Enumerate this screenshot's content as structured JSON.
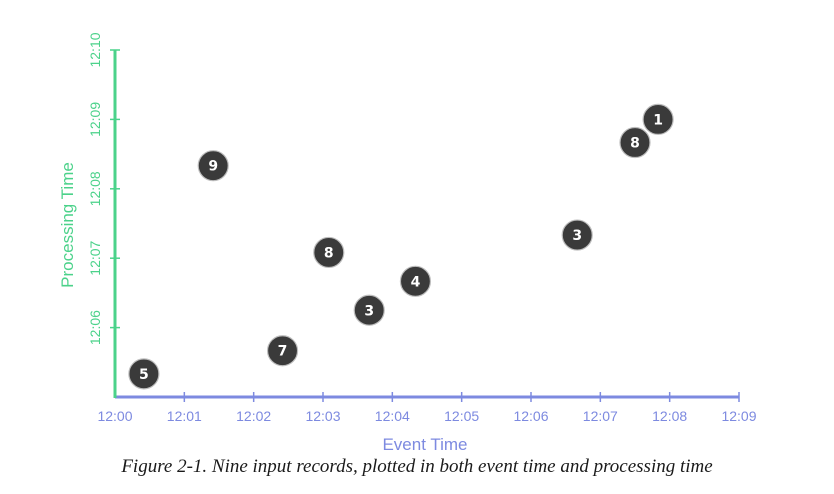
{
  "chart_data": {
    "type": "scatter",
    "title": "",
    "xlabel": "Event Time",
    "ylabel": "Processing Time",
    "x_ticks": [
      "12:00",
      "12:01",
      "12:02",
      "12:03",
      "12:04",
      "12:05",
      "12:06",
      "12:07",
      "12:08",
      "12:09"
    ],
    "y_ticks": [
      "12:06",
      "12:07",
      "12:08",
      "12:09",
      "12:10"
    ],
    "xlim": [
      "12:00",
      "12:09"
    ],
    "ylim": [
      "12:05",
      "12:10"
    ],
    "points": [
      {
        "label": "5",
        "x": "12:00:25",
        "y": "12:05:20"
      },
      {
        "label": "9",
        "x": "12:01:25",
        "y": "12:08:20"
      },
      {
        "label": "7",
        "x": "12:02:25",
        "y": "12:05:40"
      },
      {
        "label": "8",
        "x": "12:03:05",
        "y": "12:07:05"
      },
      {
        "label": "3",
        "x": "12:03:40",
        "y": "12:06:15"
      },
      {
        "label": "4",
        "x": "12:04:20",
        "y": "12:06:40"
      },
      {
        "label": "3",
        "x": "12:06:40",
        "y": "12:07:20"
      },
      {
        "label": "8",
        "x": "12:07:30",
        "y": "12:08:40"
      },
      {
        "label": "1",
        "x": "12:07:50",
        "y": "12:09:00"
      }
    ],
    "colors": {
      "x_axis": "#7d8ae0",
      "y_axis": "#4bd28a",
      "points": "#3a3a3a"
    }
  },
  "caption": "Figure 2-1. Nine input records, plotted in both event time and processing time"
}
